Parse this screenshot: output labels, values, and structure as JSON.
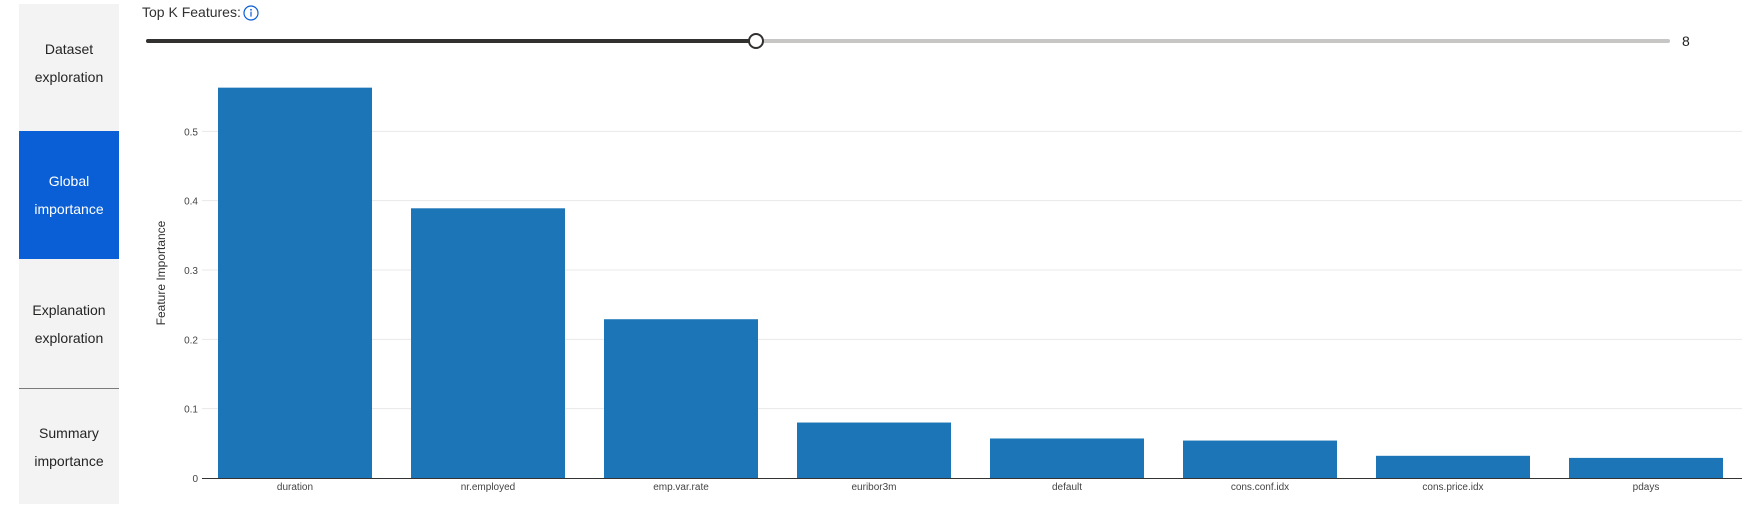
{
  "sidebar": {
    "items": [
      {
        "line1": "Dataset",
        "line2": "exploration"
      },
      {
        "line1": "Global",
        "line2": "importance"
      },
      {
        "line1": "Explanation",
        "line2": "exploration"
      },
      {
        "line1": "Summary",
        "line2": "importance"
      }
    ],
    "active_index": 1
  },
  "controls": {
    "topk_label": "Top K Features:",
    "topk_value": "8",
    "topk_max": 20
  },
  "colors": {
    "bar": "#1b75b6",
    "active_tab": "#0a5fd6",
    "grid": "#e8e8e8"
  },
  "chart_data": {
    "type": "bar",
    "categories": [
      "duration",
      "nr.employed",
      "emp.var.rate",
      "euribor3m",
      "default",
      "cons.conf.idx",
      "cons.price.idx",
      "pdays"
    ],
    "values": [
      0.563,
      0.389,
      0.229,
      0.08,
      0.057,
      0.054,
      0.032,
      0.029
    ],
    "ylabel": "Feature Importance",
    "xlabel": "",
    "title": "",
    "yticks": [
      "0",
      "0.1",
      "0.2",
      "0.3",
      "0.4",
      "0.5"
    ],
    "ylim": [
      0,
      0.6
    ],
    "grid": true
  }
}
